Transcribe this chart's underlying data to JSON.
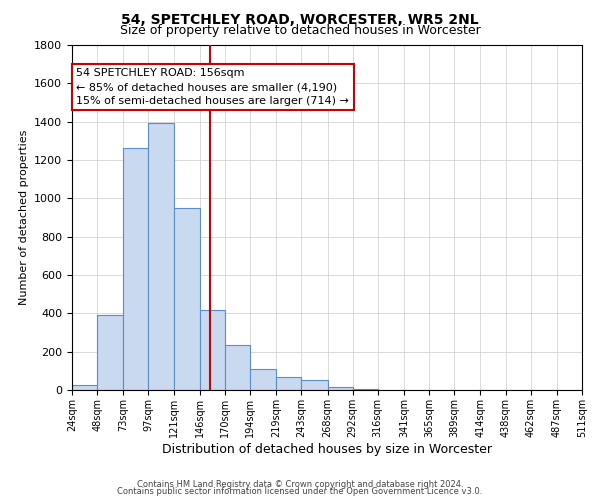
{
  "title": "54, SPETCHLEY ROAD, WORCESTER, WR5 2NL",
  "subtitle": "Size of property relative to detached houses in Worcester",
  "xlabel": "Distribution of detached houses by size in Worcester",
  "ylabel": "Number of detached properties",
  "bin_edges": [
    24,
    48,
    73,
    97,
    121,
    146,
    170,
    194,
    219,
    243,
    268,
    292,
    316,
    341,
    365,
    389,
    414,
    438,
    462,
    487,
    511
  ],
  "bin_counts": [
    25,
    390,
    1260,
    1395,
    950,
    420,
    235,
    110,
    70,
    50,
    15,
    5,
    2,
    1,
    0,
    0,
    0,
    0,
    0,
    0
  ],
  "bar_facecolor": "#c9d9f0",
  "bar_edgecolor": "#5b8dc8",
  "vline_x": 156,
  "vline_color": "#cc0000",
  "ylim": [
    0,
    1800
  ],
  "yticks": [
    0,
    200,
    400,
    600,
    800,
    1000,
    1200,
    1400,
    1600,
    1800
  ],
  "tick_labels": [
    "24sqm",
    "48sqm",
    "73sqm",
    "97sqm",
    "121sqm",
    "146sqm",
    "170sqm",
    "194sqm",
    "219sqm",
    "243sqm",
    "268sqm",
    "292sqm",
    "316sqm",
    "341sqm",
    "365sqm",
    "389sqm",
    "414sqm",
    "438sqm",
    "462sqm",
    "487sqm",
    "511sqm"
  ],
  "annotation_title": "54 SPETCHLEY ROAD: 156sqm",
  "annotation_line1": "← 85% of detached houses are smaller (4,190)",
  "annotation_line2": "15% of semi-detached houses are larger (714) →",
  "annotation_box_color": "#ffffff",
  "annotation_box_edge": "#cc0000",
  "footer1": "Contains HM Land Registry data © Crown copyright and database right 2024.",
  "footer2": "Contains public sector information licensed under the Open Government Licence v3.0.",
  "bg_color": "#ffffff",
  "grid_color": "#cccccc",
  "title_fontsize": 10,
  "subtitle_fontsize": 9,
  "annotation_fontsize": 8,
  "ylabel_fontsize": 8,
  "xlabel_fontsize": 9,
  "footer_fontsize": 6,
  "ytick_fontsize": 8,
  "xtick_fontsize": 7
}
